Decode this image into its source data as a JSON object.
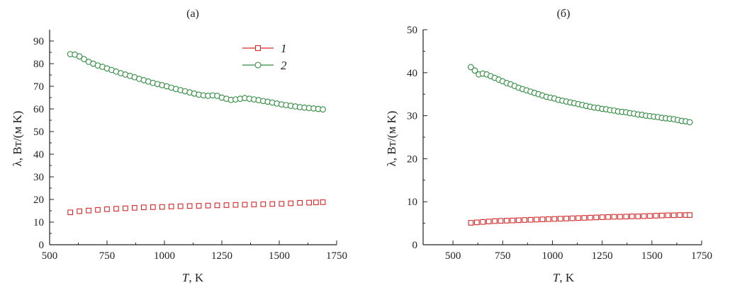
{
  "colors": {
    "series_1": "#d62728",
    "series_2": "#2e8b3e",
    "axis": "#222222"
  },
  "chart_data": [
    {
      "type": "scatter",
      "panel_label": "(а)",
      "xlabel_symbol": "T",
      "xlabel_unit": ", K",
      "ylabel": "λ, Вт/(м K)",
      "xlim": [
        500,
        1750
      ],
      "ylim": [
        0,
        95
      ],
      "x_ticks": [
        500,
        750,
        1000,
        1250,
        1500,
        1750
      ],
      "y_ticks": [
        0,
        10,
        20,
        30,
        40,
        50,
        60,
        70,
        80,
        90
      ],
      "legend": {
        "placement": "top-center",
        "entries": [
          "1",
          "2"
        ]
      },
      "series": [
        {
          "name": "1",
          "marker": "square",
          "color": "#d62728",
          "x": [
            590,
            630,
            670,
            710,
            750,
            790,
            830,
            870,
            910,
            950,
            990,
            1030,
            1070,
            1110,
            1150,
            1190,
            1230,
            1270,
            1310,
            1350,
            1390,
            1430,
            1470,
            1510,
            1550,
            1590,
            1630,
            1660,
            1690
          ],
          "y": [
            14.3,
            14.8,
            15.1,
            15.4,
            15.7,
            15.9,
            16.1,
            16.3,
            16.5,
            16.6,
            16.7,
            16.9,
            17.0,
            17.1,
            17.2,
            17.3,
            17.4,
            17.5,
            17.6,
            17.7,
            17.8,
            17.9,
            18.0,
            18.1,
            18.3,
            18.5,
            18.6,
            18.7,
            18.8
          ]
        },
        {
          "name": "2",
          "marker": "circle",
          "color": "#2e8b3e",
          "x": [
            590,
            610,
            630,
            650,
            670,
            690,
            710,
            730,
            750,
            770,
            790,
            810,
            830,
            850,
            870,
            890,
            910,
            930,
            950,
            970,
            990,
            1010,
            1030,
            1050,
            1070,
            1090,
            1110,
            1130,
            1150,
            1170,
            1190,
            1210,
            1230,
            1250,
            1270,
            1290,
            1310,
            1330,
            1350,
            1370,
            1390,
            1410,
            1430,
            1450,
            1470,
            1490,
            1510,
            1530,
            1550,
            1570,
            1590,
            1610,
            1630,
            1650,
            1670,
            1690
          ],
          "y": [
            84.2,
            84.0,
            83.2,
            82.0,
            80.8,
            80.0,
            79.2,
            78.6,
            77.9,
            77.2,
            76.5,
            75.8,
            75.2,
            74.6,
            74.0,
            73.3,
            72.7,
            72.1,
            71.5,
            71.0,
            70.5,
            70.0,
            69.4,
            68.8,
            68.3,
            67.8,
            67.3,
            66.8,
            66.3,
            66.0,
            65.8,
            66.0,
            65.8,
            65.0,
            64.5,
            64.0,
            64.2,
            64.5,
            64.8,
            64.5,
            64.2,
            63.9,
            63.5,
            63.2,
            62.8,
            62.4,
            62.0,
            61.7,
            61.4,
            61.1,
            60.8,
            60.6,
            60.4,
            60.2,
            60.0,
            59.8
          ]
        }
      ]
    },
    {
      "type": "scatter",
      "panel_label": "(б)",
      "xlabel_symbol": "T",
      "xlabel_unit": ", K",
      "ylabel": "λ, Вт/(м K)",
      "xlim": [
        350,
        1750
      ],
      "ylim": [
        0,
        50
      ],
      "x_ticks": [
        500,
        750,
        1000,
        1250,
        1500,
        1750
      ],
      "y_ticks": [
        0,
        10,
        20,
        30,
        40,
        50
      ],
      "series": [
        {
          "name": "1",
          "marker": "square",
          "color": "#d62728",
          "x": [
            590,
            620,
            650,
            680,
            710,
            740,
            770,
            800,
            830,
            860,
            890,
            920,
            950,
            980,
            1010,
            1040,
            1070,
            1100,
            1130,
            1160,
            1190,
            1220,
            1250,
            1280,
            1310,
            1340,
            1370,
            1400,
            1430,
            1460,
            1490,
            1520,
            1550,
            1580,
            1610,
            1640,
            1670,
            1690
          ],
          "y": [
            5.1,
            5.2,
            5.3,
            5.4,
            5.5,
            5.55,
            5.6,
            5.65,
            5.7,
            5.75,
            5.8,
            5.85,
            5.9,
            5.95,
            6.0,
            6.05,
            6.1,
            6.15,
            6.2,
            6.25,
            6.3,
            6.35,
            6.4,
            6.45,
            6.5,
            6.5,
            6.55,
            6.6,
            6.6,
            6.65,
            6.7,
            6.75,
            6.8,
            6.85,
            6.85,
            6.9,
            6.9,
            6.9
          ]
        },
        {
          "name": "2",
          "marker": "circle",
          "color": "#2e8b3e",
          "x": [
            590,
            610,
            630,
            650,
            670,
            690,
            710,
            730,
            750,
            770,
            790,
            810,
            830,
            850,
            870,
            890,
            910,
            930,
            950,
            970,
            990,
            1010,
            1030,
            1050,
            1070,
            1090,
            1110,
            1130,
            1150,
            1170,
            1190,
            1210,
            1230,
            1250,
            1270,
            1290,
            1310,
            1330,
            1350,
            1370,
            1390,
            1410,
            1430,
            1450,
            1470,
            1490,
            1510,
            1530,
            1550,
            1570,
            1590,
            1610,
            1630,
            1650,
            1670,
            1690
          ],
          "y": [
            41.3,
            40.5,
            39.6,
            39.8,
            39.6,
            39.2,
            38.8,
            38.4,
            38.0,
            37.6,
            37.3,
            36.9,
            36.5,
            36.2,
            35.9,
            35.6,
            35.3,
            35.0,
            34.7,
            34.4,
            34.2,
            34.0,
            33.7,
            33.5,
            33.3,
            33.1,
            32.9,
            32.7,
            32.5,
            32.3,
            32.1,
            31.9,
            31.8,
            31.6,
            31.5,
            31.3,
            31.2,
            31.0,
            30.9,
            30.8,
            30.6,
            30.5,
            30.3,
            30.2,
            30.0,
            29.9,
            29.8,
            29.7,
            29.5,
            29.4,
            29.3,
            29.2,
            29.0,
            28.8,
            28.7,
            28.5
          ]
        }
      ]
    }
  ]
}
